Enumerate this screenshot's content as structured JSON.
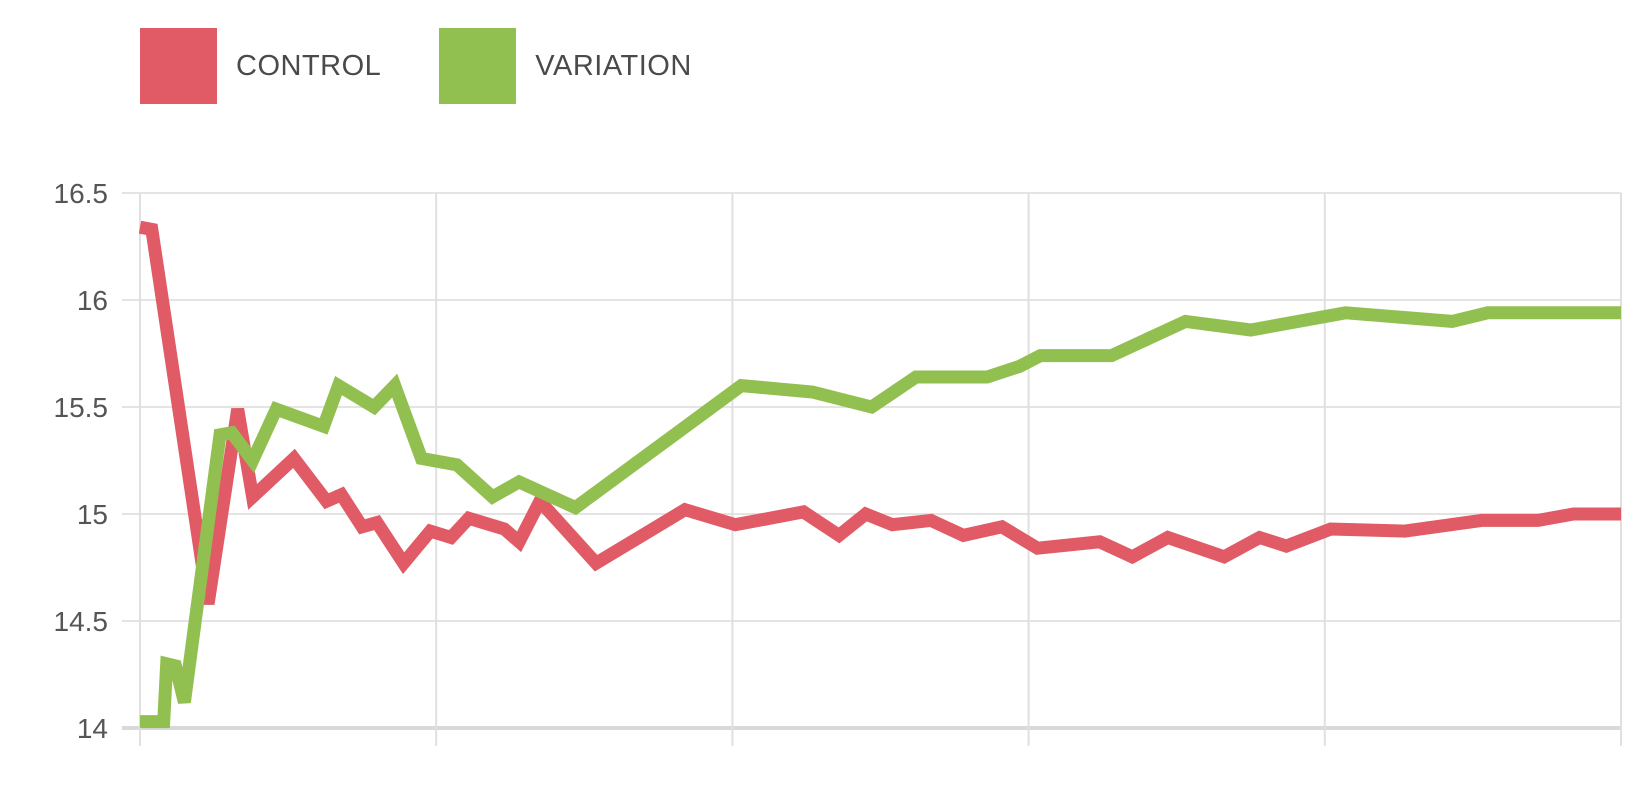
{
  "chart_data": {
    "type": "line",
    "title": "",
    "xlabel": "",
    "ylabel": "",
    "ylim": [
      14,
      16.5
    ],
    "xlim": [
      0,
      5
    ],
    "y_ticks": [
      "16.5",
      "16",
      "15.5",
      "15",
      "14.5",
      "14"
    ],
    "y_tick_values": [
      16.5,
      16,
      15.5,
      15,
      14.5,
      14
    ],
    "x_gridlines": [
      0,
      1,
      2,
      3,
      4,
      5
    ],
    "grid": true,
    "legend_position": "top-left",
    "series": [
      {
        "name": "CONTROL",
        "color": "#e05b65",
        "points": [
          [
            0.0,
            16.34
          ],
          [
            0.04,
            16.33
          ],
          [
            0.23,
            14.58
          ],
          [
            0.33,
            15.49
          ],
          [
            0.38,
            15.08
          ],
          [
            0.52,
            15.26
          ],
          [
            0.63,
            15.06
          ],
          [
            0.68,
            15.09
          ],
          [
            0.75,
            14.94
          ],
          [
            0.8,
            14.96
          ],
          [
            0.89,
            14.77
          ],
          [
            0.98,
            14.92
          ],
          [
            1.05,
            14.89
          ],
          [
            1.11,
            14.98
          ],
          [
            1.23,
            14.93
          ],
          [
            1.28,
            14.87
          ],
          [
            1.35,
            15.06
          ],
          [
            1.54,
            14.77
          ],
          [
            1.84,
            15.02
          ],
          [
            2.01,
            14.95
          ],
          [
            2.24,
            15.01
          ],
          [
            2.36,
            14.9
          ],
          [
            2.45,
            15.0
          ],
          [
            2.54,
            14.95
          ],
          [
            2.67,
            14.97
          ],
          [
            2.78,
            14.9
          ],
          [
            2.91,
            14.94
          ],
          [
            3.03,
            14.84
          ],
          [
            3.24,
            14.87
          ],
          [
            3.35,
            14.8
          ],
          [
            3.47,
            14.89
          ],
          [
            3.66,
            14.8
          ],
          [
            3.78,
            14.89
          ],
          [
            3.87,
            14.85
          ],
          [
            4.02,
            14.93
          ],
          [
            4.27,
            14.92
          ],
          [
            4.53,
            14.97
          ],
          [
            4.72,
            14.97
          ],
          [
            4.84,
            15.0
          ],
          [
            5.0,
            15.0
          ]
        ]
      },
      {
        "name": "VARIATION",
        "color": "#92c050",
        "points": [
          [
            0.0,
            14.03
          ],
          [
            0.08,
            14.03
          ],
          [
            0.09,
            14.3
          ],
          [
            0.12,
            14.29
          ],
          [
            0.15,
            14.12
          ],
          [
            0.27,
            15.37
          ],
          [
            0.31,
            15.38
          ],
          [
            0.38,
            15.25
          ],
          [
            0.46,
            15.49
          ],
          [
            0.62,
            15.41
          ],
          [
            0.67,
            15.6
          ],
          [
            0.79,
            15.5
          ],
          [
            0.86,
            15.6
          ],
          [
            0.95,
            15.26
          ],
          [
            1.07,
            15.23
          ],
          [
            1.19,
            15.08
          ],
          [
            1.28,
            15.15
          ],
          [
            1.47,
            15.03
          ],
          [
            2.03,
            15.6
          ],
          [
            2.27,
            15.57
          ],
          [
            2.47,
            15.5
          ],
          [
            2.62,
            15.64
          ],
          [
            2.86,
            15.64
          ],
          [
            2.97,
            15.69
          ],
          [
            3.04,
            15.74
          ],
          [
            3.28,
            15.74
          ],
          [
            3.53,
            15.9
          ],
          [
            3.75,
            15.86
          ],
          [
            4.07,
            15.94
          ],
          [
            4.43,
            15.9
          ],
          [
            4.55,
            15.94
          ],
          [
            5.0,
            15.94
          ]
        ]
      }
    ]
  }
}
